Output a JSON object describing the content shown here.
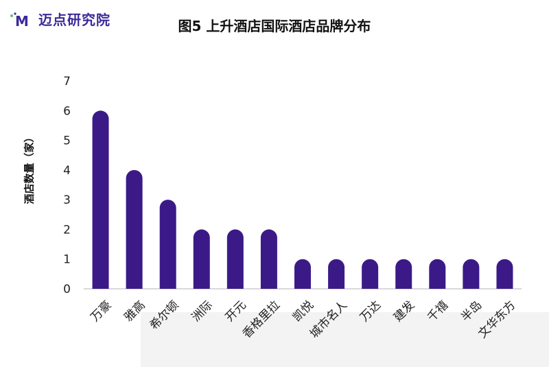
{
  "logo": {
    "text": "迈点研究院",
    "mark_letter": "M"
  },
  "colors": {
    "bar": "#3b1a88",
    "axis": "#d9d9d9",
    "logo": "#3a2a9a",
    "logo_accent": "#5bbf6b"
  },
  "chart_data": {
    "type": "bar",
    "title": "图5 上升酒店国际酒店品牌分布",
    "ylabel": "酒店数量（家）",
    "xlabel": "",
    "ylim": [
      0,
      7
    ],
    "yticks": [
      0,
      1,
      2,
      3,
      4,
      5,
      6,
      7
    ],
    "categories": [
      "万豪",
      "雅高",
      "希尔顿",
      "洲际",
      "开元",
      "香格里拉",
      "凯悦",
      "城市名人",
      "万达",
      "建发",
      "千禧",
      "半岛",
      "文华东方"
    ],
    "values": [
      6,
      4,
      3,
      2,
      2,
      2,
      1,
      1,
      1,
      1,
      1,
      1,
      1
    ],
    "grid": false,
    "legend": "none"
  }
}
